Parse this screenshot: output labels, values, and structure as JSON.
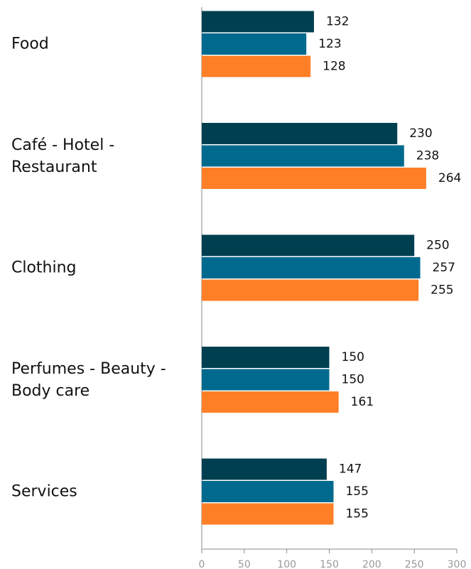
{
  "chart_data": {
    "type": "hbar",
    "categories": [
      "Food",
      "Café - Hotel - Restaurant",
      "Clothing",
      "Perfumes - Beauty - Body care",
      "Services"
    ],
    "series": [
      {
        "color": "#003f50",
        "values": [
          132,
          230,
          250,
          150,
          147
        ]
      },
      {
        "color": "#006a8e",
        "values": [
          123,
          238,
          257,
          150,
          155
        ]
      },
      {
        "color": "#ff7f27",
        "values": [
          128,
          264,
          255,
          161,
          155
        ]
      }
    ],
    "xlim": [
      0,
      300
    ],
    "xticks": [
      0,
      50,
      100,
      150,
      200,
      250,
      300
    ]
  }
}
